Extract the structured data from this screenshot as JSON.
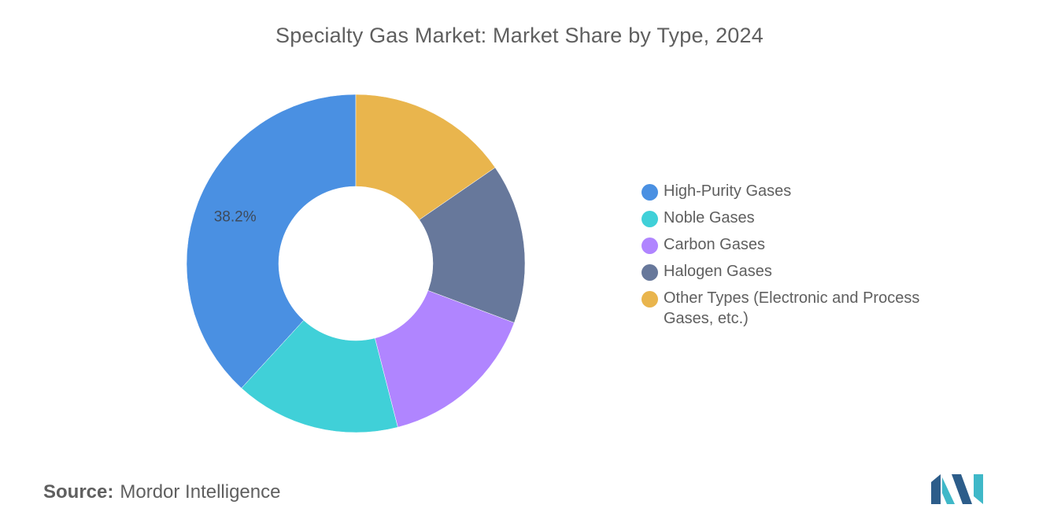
{
  "chart_data": {
    "type": "pie",
    "donut": true,
    "title": "Specialty Gas Market: Market Share by Type, 2024",
    "categories": [
      "High-Purity Gases",
      "Noble Gases",
      "Carbon Gases",
      "Halogen Gases",
      "Other Types (Electronic and Process Gases, etc.)"
    ],
    "values": [
      38.2,
      15.8,
      15.3,
      15.3,
      15.4
    ],
    "colors": [
      "#4a90e2",
      "#40d0d8",
      "#b085ff",
      "#67789b",
      "#e9b54d"
    ],
    "data_labels": [
      "38.2%",
      "",
      "",
      "",
      ""
    ],
    "start_angle_deg": 0,
    "direction": "counterclockwise",
    "legend_position": "right"
  },
  "source": {
    "prefix": "Source:",
    "text": "Mordor Intelligence"
  },
  "logo": {
    "icon": "mordor-intelligence-logo",
    "colors": [
      "#2d5d8a",
      "#3fb8c8"
    ]
  }
}
